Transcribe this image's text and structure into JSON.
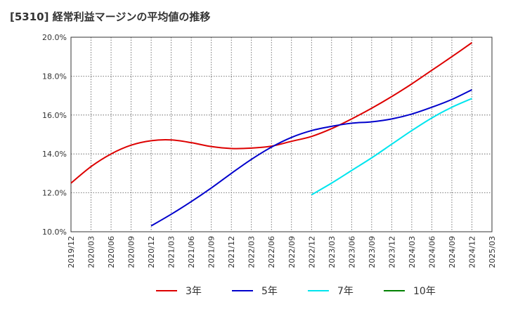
{
  "chart_data": {
    "type": "line",
    "title": "[5310]  経常利益マージンの平均値の推移",
    "xlabel": "",
    "ylabel": "",
    "ylim": [
      10.0,
      20.0
    ],
    "y_ticks": [
      "10.0%",
      "12.0%",
      "14.0%",
      "16.0%",
      "18.0%",
      "20.0%"
    ],
    "y_tick_values": [
      10,
      12,
      14,
      16,
      18,
      20
    ],
    "x_ticks": [
      "2019/12",
      "2020/03",
      "2020/06",
      "2020/09",
      "2020/12",
      "2021/03",
      "2021/06",
      "2021/09",
      "2021/12",
      "2022/03",
      "2022/06",
      "2022/09",
      "2022/12",
      "2023/03",
      "2023/06",
      "2023/09",
      "2023/12",
      "2024/03",
      "2024/06",
      "2024/09",
      "2024/12",
      "2025/03"
    ],
    "grid": true,
    "legend_position": "bottom",
    "series": [
      {
        "name": "3年",
        "color": "#dd0000",
        "x": [
          "2019/12",
          "2020/03",
          "2020/06",
          "2020/09",
          "2020/12",
          "2021/03",
          "2021/06",
          "2021/09",
          "2021/12",
          "2022/03",
          "2022/06",
          "2022/09",
          "2022/12",
          "2023/03",
          "2023/06",
          "2023/09",
          "2023/12",
          "2024/03",
          "2024/06",
          "2024/09",
          "2024/12"
        ],
        "values": [
          12.5,
          13.35,
          14.0,
          14.45,
          14.68,
          14.72,
          14.58,
          14.38,
          14.28,
          14.3,
          14.4,
          14.65,
          14.9,
          15.3,
          15.8,
          16.35,
          16.95,
          17.6,
          18.3,
          19.0,
          19.72
        ]
      },
      {
        "name": "5年",
        "color": "#0000cc",
        "x": [
          "2020/12",
          "2021/03",
          "2021/06",
          "2021/09",
          "2021/12",
          "2022/03",
          "2022/06",
          "2022/09",
          "2022/12",
          "2023/03",
          "2023/06",
          "2023/09",
          "2023/12",
          "2024/03",
          "2024/06",
          "2024/09",
          "2024/12"
        ],
        "values": [
          10.3,
          10.9,
          11.55,
          12.25,
          13.0,
          13.72,
          14.35,
          14.85,
          15.2,
          15.42,
          15.58,
          15.65,
          15.8,
          16.05,
          16.4,
          16.8,
          17.3
        ]
      },
      {
        "name": "7年",
        "color": "#00e5ee",
        "x": [
          "2022/12",
          "2023/03",
          "2023/06",
          "2023/09",
          "2023/12",
          "2024/03",
          "2024/06",
          "2024/09",
          "2024/12"
        ],
        "values": [
          11.9,
          12.5,
          13.15,
          13.8,
          14.5,
          15.2,
          15.85,
          16.4,
          16.85
        ]
      },
      {
        "name": "10年",
        "color": "#008000",
        "x": [],
        "values": []
      }
    ]
  }
}
